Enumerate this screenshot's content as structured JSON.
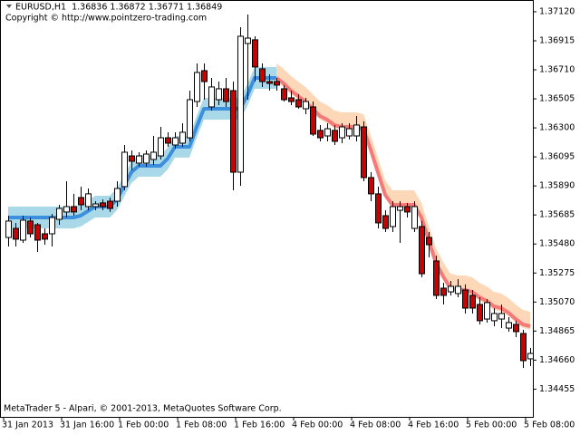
{
  "chart_data": {
    "type": "candlestick",
    "title": "EURUSD,H1  1.36836 1.36872 1.36771 1.36849",
    "subtitle": "Copyright © http://www.pointzero-trading.com",
    "footer": "MetaTrader 5 - Alpari, © 2001-2013, MetaQuotes Software Corp.",
    "up_color": "#ffffff",
    "down_color": "#cc0000",
    "outline_color": "#000000",
    "categories": [
      "31 Jan 2013",
      null,
      null,
      null,
      null,
      null,
      null,
      null,
      "31 Jan 16:00",
      null,
      null,
      null,
      null,
      null,
      null,
      null,
      "1 Feb 00:00",
      null,
      null,
      null,
      null,
      null,
      null,
      null,
      "1 Feb 08:00",
      null,
      null,
      null,
      null,
      null,
      null,
      null,
      "1 Feb 16:00",
      null,
      null,
      null,
      null,
      null,
      null,
      null,
      "4 Feb 00:00",
      null,
      null,
      null,
      null,
      null,
      null,
      null,
      "4 Feb 08:00",
      null,
      null,
      null,
      null,
      null,
      null,
      null,
      "4 Feb 16:00",
      null,
      null,
      null,
      null,
      null,
      null,
      null,
      "5 Feb 00:00",
      null,
      null,
      null,
      null,
      null,
      null,
      null,
      "5 Feb 08:00"
    ],
    "open": [
      1.35526,
      1.3559,
      1.35507,
      1.35642,
      1.35616,
      1.35552,
      1.35552,
      1.35654,
      1.35706,
      1.35744,
      1.35808,
      1.35744,
      1.35744,
      1.3577,
      1.35782,
      1.35782,
      1.35885,
      1.36102,
      1.36051,
      1.36051,
      1.36077,
      1.36102,
      1.3623,
      1.36179,
      1.36192,
      1.3623,
      1.36486,
      1.36704,
      1.36448,
      1.36499,
      1.36576,
      1.36563,
      1.35987,
      1.36896,
      1.36922,
      1.36717,
      1.36627,
      1.36627,
      1.36576,
      1.36512,
      1.36499,
      1.36435,
      1.36448,
      1.36282,
      1.36243,
      1.36282,
      1.3623,
      1.36243,
      1.36243,
      1.36307,
      1.35949,
      1.35834,
      1.3568,
      1.35603,
      1.35718,
      1.35744,
      1.3559,
      1.35603,
      1.35526,
      1.3536,
      1.35168,
      1.35142,
      1.3513,
      1.35155,
      1.35117,
      1.35053,
      1.3495,
      1.34938,
      1.3495,
      1.34886,
      1.34912,
      1.34848,
      1.34669
    ],
    "high": [
      1.3568,
      1.35629,
      1.3568,
      1.35667,
      1.35629,
      1.3559,
      1.35693,
      1.35757,
      1.35923,
      1.35834,
      1.35885,
      1.35872,
      1.35782,
      1.35795,
      1.35808,
      1.35923,
      1.36179,
      1.36141,
      1.36128,
      1.36141,
      1.36243,
      1.36307,
      1.36269,
      1.36269,
      1.36333,
      1.36563,
      1.36755,
      1.36755,
      1.36653,
      1.36627,
      1.36653,
      1.36627,
      1.37011,
      1.37101,
      1.36947,
      1.36755,
      1.36678,
      1.36653,
      1.36602,
      1.36563,
      1.36538,
      1.36512,
      1.36486,
      1.3632,
      1.36333,
      1.3632,
      1.36333,
      1.36333,
      1.36384,
      1.36346,
      1.35987,
      1.35885,
      1.35718,
      1.35782,
      1.35782,
      1.3577,
      1.35782,
      1.35642,
      1.35565,
      1.35398,
      1.35206,
      1.35219,
      1.35232,
      1.35194,
      1.35155,
      1.35104,
      1.35091,
      1.35027,
      1.35053,
      1.34963,
      1.34938,
      1.34874,
      1.34746
    ],
    "low": [
      1.35462,
      1.35462,
      1.35488,
      1.35526,
      1.35424,
      1.35475,
      1.35462,
      1.35616,
      1.35667,
      1.3568,
      1.35718,
      1.35718,
      1.35718,
      1.35718,
      1.35706,
      1.35744,
      1.35859,
      1.36,
      1.36026,
      1.36026,
      1.36038,
      1.36077,
      1.36166,
      1.36154,
      1.36166,
      1.36205,
      1.36448,
      1.36499,
      1.36422,
      1.36461,
      1.36448,
      1.35859,
      1.35891,
      1.36499,
      1.36627,
      1.36589,
      1.36563,
      1.36563,
      1.36486,
      1.36461,
      1.36435,
      1.36397,
      1.36243,
      1.36205,
      1.36205,
      1.36179,
      1.36192,
      1.36218,
      1.36205,
      1.35923,
      1.35782,
      1.3559,
      1.35565,
      1.35565,
      1.35488,
      1.35667,
      1.35565,
      1.35245,
      1.35386,
      1.35091,
      1.35053,
      1.35117,
      1.35104,
      1.34989,
      1.34989,
      1.34912,
      1.34925,
      1.34899,
      1.34886,
      1.34861,
      1.34822,
      1.34605,
      1.34618
    ],
    "close": [
      1.35642,
      1.35514,
      1.35648,
      1.35552,
      1.35507,
      1.35514,
      1.35667,
      1.35731,
      1.35744,
      1.35706,
      1.35757,
      1.35834,
      1.35763,
      1.35744,
      1.35731,
      1.35872,
      1.36128,
      1.36064,
      1.36102,
      1.36115,
      1.36128,
      1.3623,
      1.36192,
      1.3623,
      1.36269,
      1.36499,
      1.36691,
      1.36627,
      1.36589,
      1.36576,
      1.36486,
      1.35987,
      1.36947,
      1.36934,
      1.3673,
      1.36627,
      1.36614,
      1.36602,
      1.36499,
      1.36486,
      1.36448,
      1.36486,
      1.36256,
      1.3623,
      1.36294,
      1.36205,
      1.36307,
      1.36294,
      1.3632,
      1.35949,
      1.35834,
      1.35629,
      1.3559,
      1.35744,
      1.35744,
      1.35706,
      1.35744,
      1.3527,
      1.35475,
      1.35117,
      1.35117,
      1.35181,
      1.35181,
      1.35027,
      1.35027,
      1.34938,
      1.35066,
      1.34989,
      1.34989,
      1.34925,
      1.34861,
      1.34656,
      1.34707
    ],
    "series": [
      {
        "color": "#3c8fdc",
        "band_color": "#a9d9e8",
        "values": [
          1.35667,
          1.35667,
          1.35667,
          1.35667,
          1.35667,
          1.35667,
          1.35667,
          1.35667,
          1.35667,
          1.35667,
          1.3568,
          1.35712,
          1.35744,
          1.35744,
          1.35744,
          1.35795,
          1.35891,
          1.35987,
          1.36032,
          1.36032,
          1.36032,
          1.36032,
          1.36083,
          1.36166,
          1.36166,
          1.36166,
          1.36307,
          1.36435,
          1.36435,
          1.36435,
          1.36435,
          1.36435,
          1.36435,
          1.36531,
          1.36653,
          1.36653,
          1.36653,
          1.36653,
          null,
          null,
          null,
          null,
          null,
          null,
          null,
          null,
          null,
          null,
          null,
          null,
          null,
          null,
          null,
          null,
          null,
          null,
          null,
          null,
          null,
          null,
          null,
          null,
          null,
          null,
          null,
          null,
          null,
          null,
          null,
          null,
          null,
          null,
          null
        ],
        "upper": [
          1.35744,
          1.35744,
          1.35744,
          1.35744,
          1.35744,
          1.35744,
          1.35744,
          1.35744,
          1.35744,
          1.35744,
          1.35757,
          1.35789,
          1.35821,
          1.35821,
          1.35821,
          1.35872,
          1.35968,
          1.36064,
          1.36109,
          1.36109,
          1.36109,
          1.36109,
          1.3616,
          1.36243,
          1.36243,
          1.36243,
          1.36384,
          1.36512,
          1.36512,
          1.36512,
          1.36512,
          1.36512,
          1.36512,
          1.36608,
          1.3673,
          1.3673,
          1.3673,
          1.3673,
          null,
          null,
          null,
          null,
          null,
          null,
          null,
          null,
          null,
          null,
          null,
          null,
          null,
          null,
          null,
          null,
          null,
          null,
          null,
          null,
          null,
          null,
          null,
          null,
          null,
          null,
          null,
          null,
          null,
          null,
          null,
          null,
          null,
          null,
          null
        ],
        "lower": [
          1.3559,
          1.3559,
          1.3559,
          1.3559,
          1.3559,
          1.3559,
          1.3559,
          1.3559,
          1.3559,
          1.3559,
          1.35603,
          1.35635,
          1.35667,
          1.35667,
          1.35667,
          1.35718,
          1.35814,
          1.3591,
          1.35955,
          1.35955,
          1.35955,
          1.35955,
          1.36006,
          1.3609,
          1.3609,
          1.3609,
          1.3623,
          1.36358,
          1.36358,
          1.36358,
          1.36358,
          1.36358,
          1.36358,
          1.36454,
          1.36576,
          1.36576,
          1.36576,
          1.36576,
          null,
          null,
          null,
          null,
          null,
          null,
          null,
          null,
          null,
          null,
          null,
          null,
          null,
          null,
          null,
          null,
          null,
          null,
          null,
          null,
          null,
          null,
          null,
          null,
          null,
          null,
          null,
          null,
          null,
          null,
          null,
          null,
          null,
          null,
          null
        ]
      },
      {
        "color": "#f47a7a",
        "band_color": "#fcd8b8",
        "values": [
          null,
          null,
          null,
          null,
          null,
          null,
          null,
          null,
          null,
          null,
          null,
          null,
          null,
          null,
          null,
          null,
          null,
          null,
          null,
          null,
          null,
          null,
          null,
          null,
          null,
          null,
          null,
          null,
          null,
          null,
          null,
          null,
          null,
          null,
          null,
          null,
          null,
          1.36653,
          1.36614,
          1.36563,
          1.36525,
          1.36486,
          1.36435,
          1.36384,
          1.36358,
          1.3632,
          1.36307,
          1.36307,
          1.36307,
          1.36294,
          1.36147,
          1.35987,
          1.35827,
          1.35757,
          1.35757,
          1.35757,
          1.35757,
          1.35667,
          1.35507,
          1.35347,
          1.35251,
          1.35168,
          1.35155,
          1.35155,
          1.35142,
          1.35104,
          1.35078,
          1.3504,
          1.35027,
          1.34995,
          1.3495,
          1.34912,
          1.34899
        ],
        "upper": [
          null,
          null,
          null,
          null,
          null,
          null,
          null,
          null,
          null,
          null,
          null,
          null,
          null,
          null,
          null,
          null,
          null,
          null,
          null,
          null,
          null,
          null,
          null,
          null,
          null,
          null,
          null,
          null,
          null,
          null,
          null,
          null,
          null,
          null,
          null,
          null,
          null,
          1.36755,
          1.36717,
          1.36666,
          1.36627,
          1.36589,
          1.36538,
          1.36486,
          1.36461,
          1.36422,
          1.3641,
          1.3641,
          1.3641,
          1.36397,
          1.3625,
          1.3609,
          1.3593,
          1.35859,
          1.35859,
          1.35859,
          1.35859,
          1.3577,
          1.3561,
          1.3545,
          1.35354,
          1.3527,
          1.35258,
          1.35258,
          1.35245,
          1.35206,
          1.35181,
          1.35142,
          1.3513,
          1.35098,
          1.35053,
          1.35014,
          1.35002
        ],
        "lower": [
          null,
          null,
          null,
          null,
          null,
          null,
          null,
          null,
          null,
          null,
          null,
          null,
          null,
          null,
          null,
          null,
          null,
          null,
          null,
          null,
          null,
          null,
          null,
          null,
          null,
          null,
          null,
          null,
          null,
          null,
          null,
          null,
          null,
          null,
          null,
          null,
          null,
          1.36627,
          1.36589,
          1.36538,
          1.36499,
          1.36461,
          1.3641,
          1.36358,
          1.36333,
          1.36294,
          1.36282,
          1.36282,
          1.36282,
          1.36269,
          1.36122,
          1.35962,
          1.35802,
          1.35731,
          1.35731,
          1.35731,
          1.35731,
          1.35642,
          1.35482,
          1.35322,
          1.35226,
          1.35142,
          1.3513,
          1.3513,
          1.35117,
          1.35078,
          1.35053,
          1.35014,
          1.35002,
          1.3497,
          1.34925,
          1.34886,
          1.34874
        ]
      }
    ],
    "ylim": [
      1.34259,
      1.37203
    ],
    "yticks": [
      {
        "value": 1.3712,
        "label": "1.37120"
      },
      {
        "value": 1.36915,
        "label": "1.36915"
      },
      {
        "value": 1.3671,
        "label": "1.36710"
      },
      {
        "value": 1.36505,
        "label": "1.36505"
      },
      {
        "value": 1.363,
        "label": "1.36300"
      },
      {
        "value": 1.36095,
        "label": "1.36095"
      },
      {
        "value": 1.3589,
        "label": "1.35890"
      },
      {
        "value": 1.35685,
        "label": "1.35685"
      },
      {
        "value": 1.3548,
        "label": "1.35480"
      },
      {
        "value": 1.35275,
        "label": "1.35275"
      },
      {
        "value": 1.3507,
        "label": "1.35070"
      },
      {
        "value": 1.34865,
        "label": "1.34865"
      },
      {
        "value": 1.3466,
        "label": "1.34660"
      },
      {
        "value": 1.34455,
        "label": "1.34455"
      }
    ],
    "grid": false
  }
}
